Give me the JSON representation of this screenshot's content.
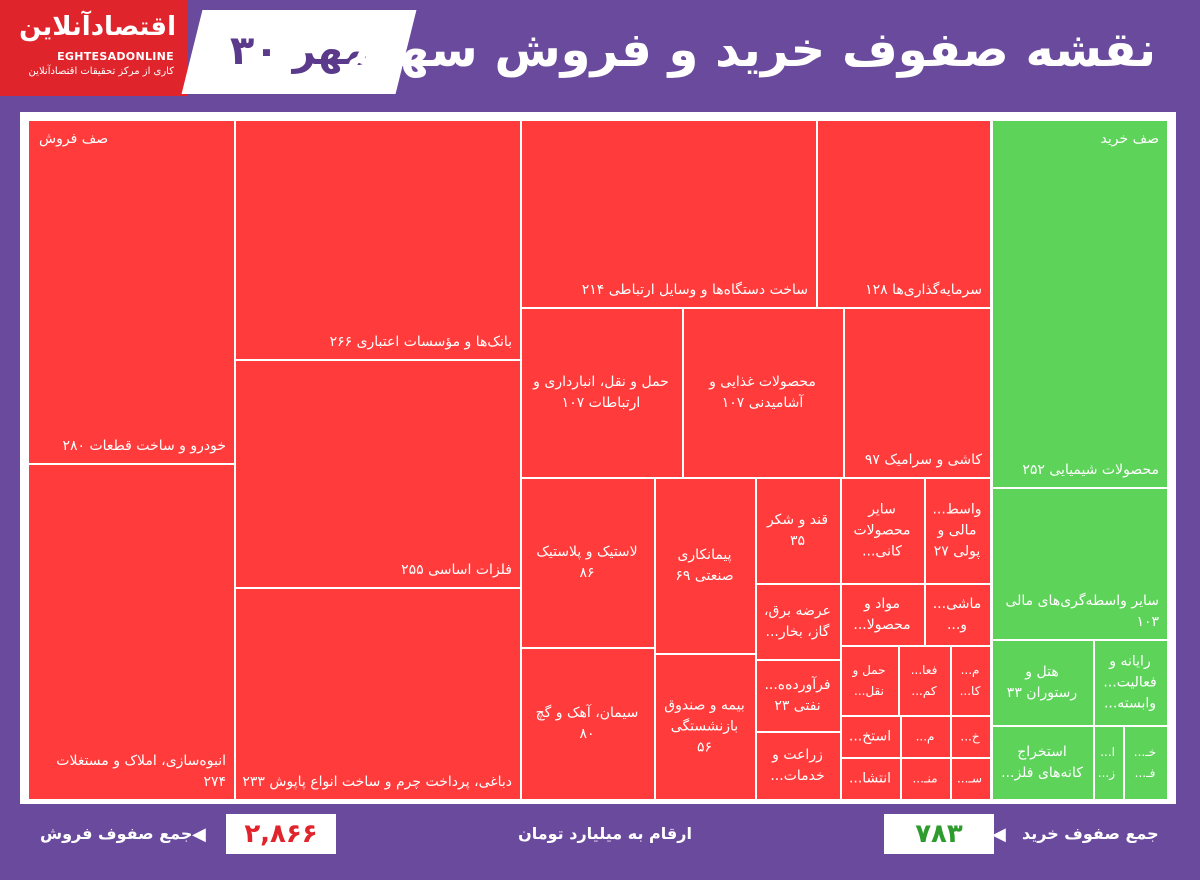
{
  "header": {
    "title": "نقشه صفوف خرید و فروش سهام",
    "date": "۳۰ مهر",
    "logo_name": "اقتصادآنلاین",
    "logo_latin": "EGHTESADONLINE",
    "logo_tagline": "کاری از مرکز تحقیقات اقتصادآنلاین"
  },
  "footer": {
    "sell_label": "جمع صفوف فروش",
    "sell_total": "۲,۸۶۶",
    "unit_label": "ارقام به میلیارد تومان",
    "buy_label": "جمع صفوف خرید",
    "buy_total": "۷۸۳"
  },
  "chart_data": {
    "type": "treemap",
    "groups": [
      {
        "name": "صف فروش",
        "color": "#ff3b3b",
        "total": "۲,۸۶۶",
        "items": [
          {
            "label": "خودرو و ساخت قطعات ۲۸۰",
            "value": 280
          },
          {
            "label": "انبوه‌سازی، املاک و مستغلات ۲۷۴",
            "value": 274
          },
          {
            "label": "بانک‌ها و مؤسسات اعتباری ۲۶۶",
            "value": 266
          },
          {
            "label": "فلزات اساسی ۲۵۵",
            "value": 255
          },
          {
            "label": "دباغی، پرداخت چرم و ساخت انواع پاپوش ۲۳۳",
            "value": 233
          },
          {
            "label": "ساخت دستگاه‌ها و وسایل ارتباطی ۲۱۴",
            "value": 214
          },
          {
            "label": "سرمایه‌گذاری‌ها ۱۲۸",
            "value": 128
          },
          {
            "label": "حمل و نقل، انبارداری و ارتباطات ۱۰۷",
            "value": 107
          },
          {
            "label": "محصولات غذایی و آشامیدنی ۱۰۷",
            "value": 107
          },
          {
            "label": "کاشی و سرامیک ۹۷",
            "value": 97
          },
          {
            "label": "لاستیک و پلاستیک ۸۶",
            "value": 86
          },
          {
            "label": "سیمان، آهک و گچ ۸۰",
            "value": 80
          },
          {
            "label": "پیمانکاری صنعتی ۶۹",
            "value": 69
          },
          {
            "label": "بیمه و صندوق بازنشستگی ۵۶",
            "value": 56
          },
          {
            "label": "قند و شکر ۳۵",
            "value": 35
          },
          {
            "label": "سایر محصولات کانی...",
            "value": null
          },
          {
            "label": "واسط... مالی و پولی ۲۷",
            "value": 27
          },
          {
            "label": "عرضه برق، گاز، بخار...",
            "value": null
          },
          {
            "label": "مواد و محصولا...",
            "value": null
          },
          {
            "label": "ماشی... و...",
            "value": null
          },
          {
            "label": "فرآورده‌ه... نفتی ۲۳",
            "value": 23
          },
          {
            "label": "حمل و نقل...",
            "value": null
          },
          {
            "label": "فعا... کم...",
            "value": null
          },
          {
            "label": "م... کا...",
            "value": null
          },
          {
            "label": "زراعت و خدمات...",
            "value": null
          },
          {
            "label": "استخ...",
            "value": null
          },
          {
            "label": "م...",
            "value": null
          },
          {
            "label": "خ...",
            "value": null
          },
          {
            "label": "انتشا...",
            "value": null
          },
          {
            "label": "منـ...",
            "value": null
          },
          {
            "label": "سـ...",
            "value": null
          }
        ]
      },
      {
        "name": "صف خرید",
        "color": "#5dd35a",
        "total": "۷۸۳",
        "items": [
          {
            "label": "محصولات شیمیایی ۲۵۲",
            "value": 252
          },
          {
            "label": "سایر واسطه‌گری‌های مالی ۱۰۳",
            "value": 103
          },
          {
            "label": "هتل و رستوران ۳۳",
            "value": 33
          },
          {
            "label": "رایانه و فعالیت... وابسته...",
            "value": null
          },
          {
            "label": "استخراج کانه‌های فلز...",
            "value": null
          },
          {
            "label": "ا... ز...",
            "value": null
          },
          {
            "label": "خـ... فـ...",
            "value": null
          }
        ]
      }
    ]
  }
}
